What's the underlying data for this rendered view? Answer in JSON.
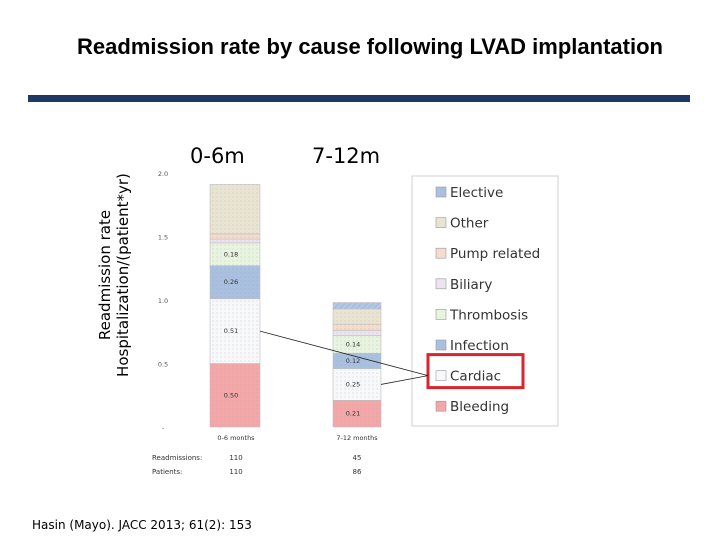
{
  "slide": {
    "title": "Readmission rate by cause following LVAD implantation",
    "period_labels": [
      "0-6m",
      "7-12m"
    ],
    "ylabel_line1": "Readmission rate",
    "ylabel_line2": "Hospitalization/(patient*yr)",
    "citation": "Hasin (Mayo). JACC 2013; 61(2): 153",
    "rule_color": "#1f3864",
    "highlight_color": "#d9262c",
    "highlighted_legend_item": "Cardiac"
  },
  "chart_data": {
    "type": "bar",
    "stacked": true,
    "categories": [
      "0-6 months",
      "7-12 months"
    ],
    "ylim": [
      0,
      2.0
    ],
    "yticks": [
      "-",
      "0.5",
      "1.0",
      "1.5",
      "2.0"
    ],
    "series": [
      {
        "name": "Bleeding",
        "values": [
          0.5,
          0.21
        ],
        "color": "#f4a7a9",
        "labels": [
          "0.50",
          "0.21"
        ]
      },
      {
        "name": "Cardiac",
        "values": [
          0.51,
          0.25
        ],
        "color": "#f7f8fa",
        "labels": [
          "0.51",
          "0.25"
        ]
      },
      {
        "name": "Infection",
        "values": [
          0.26,
          0.12
        ],
        "color": "#a9c0e0",
        "labels": [
          "0.26",
          "0.12"
        ]
      },
      {
        "name": "Thrombosis",
        "values": [
          0.18,
          0.14
        ],
        "color": "#e8f3e0",
        "labels": [
          "0.18",
          "0.14"
        ]
      },
      {
        "name": "Biliary",
        "values": [
          0.03,
          0.04
        ],
        "color": "#ede4f2",
        "labels": [
          "",
          ""
        ]
      },
      {
        "name": "Pump related",
        "values": [
          0.04,
          0.05
        ],
        "color": "#f6dccd",
        "labels": [
          "",
          ""
        ]
      },
      {
        "name": "Other",
        "values": [
          0.39,
          0.12
        ],
        "color": "#e9e3d2",
        "labels": [
          "",
          ""
        ]
      },
      {
        "name": "Elective",
        "values": [
          0.0,
          0.05
        ],
        "color": "#a9c0e0",
        "labels": [
          "",
          ""
        ]
      }
    ],
    "legend_order": [
      "Elective",
      "Other",
      "Pump related",
      "Biliary",
      "Thrombosis",
      "Infection",
      "Cardiac",
      "Bleeding"
    ],
    "legend_placement": "right",
    "table": {
      "row_labels": [
        "Readmissions:",
        "Patients:"
      ],
      "rows": [
        [
          "110",
          "45"
        ],
        [
          "110",
          "86"
        ]
      ]
    }
  }
}
